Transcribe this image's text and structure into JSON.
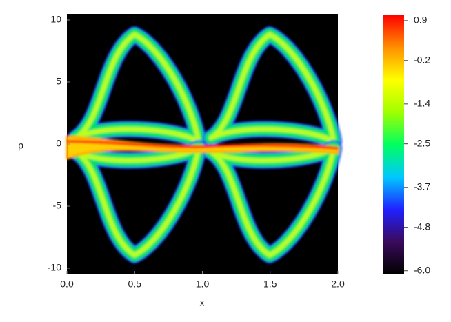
{
  "chart_data": {
    "type": "heatmap",
    "xlabel": "x",
    "ylabel": "p",
    "xlim": [
      0,
      2
    ],
    "ylim": [
      -10.5,
      10.5
    ],
    "xticks": [
      {
        "value": 0,
        "label": "0.0"
      },
      0.5,
      {
        "value": 1,
        "label": "1.0"
      },
      1.5,
      {
        "value": 2,
        "label": "2.0"
      }
    ],
    "yticks": [
      10,
      5,
      0,
      -5,
      -10
    ],
    "colorbar": {
      "clim": [
        -6.1,
        1.05
      ],
      "ticks": [
        0.9,
        -0.2,
        -1.4,
        -2.5,
        -3.7,
        -4.8,
        {
          "value": -6,
          "label": "-6.0"
        }
      ],
      "colormap": [
        "#000000",
        "#3a0a5a",
        "#2020ff",
        "#00c8ff",
        "#00ff60",
        "#a0ff00",
        "#ffff00",
        "#ff9000",
        "#ff0000"
      ]
    }
  }
}
